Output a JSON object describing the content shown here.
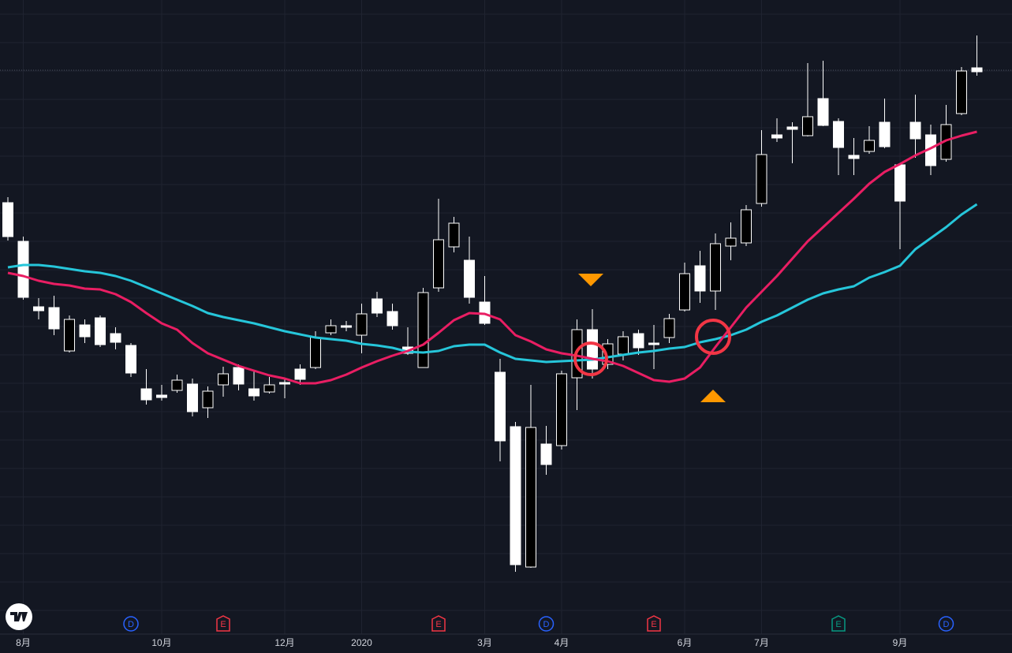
{
  "chart_data": {
    "type": "candlestick",
    "categories": [
      null,
      "8月",
      null,
      null,
      null,
      null,
      null,
      null,
      null,
      null,
      "10月",
      null,
      null,
      null,
      null,
      null,
      null,
      null,
      "12月",
      null,
      null,
      null,
      null,
      "2020",
      null,
      null,
      null,
      null,
      null,
      null,
      null,
      "3月",
      null,
      null,
      null,
      null,
      "4月",
      null,
      null,
      null,
      null,
      null,
      null,
      null,
      "6月",
      null,
      null,
      null,
      null,
      "7月",
      null,
      null,
      null,
      null,
      null,
      null,
      null,
      null,
      "9月",
      null,
      null,
      null,
      null,
      null
    ],
    "open": [
      480,
      403,
      386,
      363,
      375,
      353,
      343,
      346,
      307,
      273,
      276,
      298,
      258,
      284,
      306,
      293,
      278,
      292,
      293,
      299,
      352,
      367,
      365,
      382,
      383,
      367,
      332,
      409,
      476,
      497,
      403,
      370,
      221,
      64,
      238,
      191,
      306,
      362,
      312,
      344,
      353,
      339,
      343,
      376,
      433,
      411,
      471,
      478,
      514,
      584,
      605,
      616,
      632,
      621,
      593,
      579,
      602,
      594,
      525,
      604,
      570,
      622,
      690,
      689
    ],
    "high": [
      530,
      480,
      402,
      405,
      380,
      375,
      380,
      365,
      345,
      312,
      292,
      305,
      300,
      290,
      315,
      318,
      310,
      302,
      300,
      318,
      360,
      375,
      373,
      395,
      410,
      395,
      365,
      415,
      528,
      505,
      480,
      430,
      325,
      245,
      292,
      240,
      310,
      375,
      388,
      350,
      360,
      362,
      368,
      382,
      447,
      462,
      484,
      498,
      520,
      615,
      630,
      625,
      700,
      703,
      630,
      605,
      620,
      655,
      573,
      660,
      622,
      647,
      695,
      735
    ],
    "low": [
      475,
      400,
      375,
      355,
      333,
      345,
      340,
      337,
      302,
      267,
      272,
      282,
      252,
      250,
      277,
      285,
      272,
      281,
      275,
      292,
      312,
      355,
      360,
      332,
      378,
      362,
      330,
      314,
      410,
      460,
      395,
      368,
      195,
      55,
      60,
      178,
      210,
      260,
      300,
      312,
      323,
      330,
      312,
      345,
      385,
      396,
      387,
      450,
      468,
      518,
      600,
      573,
      607,
      620,
      558,
      558,
      585,
      592,
      464,
      580,
      558,
      575,
      634,
      684
    ],
    "close": [
      523,
      474,
      391,
      390,
      335,
      368,
      377,
      357,
      342,
      287,
      279,
      285,
      293,
      263,
      292,
      314,
      287,
      283,
      295,
      312,
      314,
      358,
      367,
      355,
      401,
      385,
      340,
      314,
      415,
      467,
      450,
      397,
      308,
      239,
      61,
      217,
      215,
      301,
      362,
      318,
      331,
      357,
      345,
      352,
      387,
      443,
      411,
      468,
      472,
      522,
      609,
      619,
      608,
      655,
      626,
      583,
      588,
      625,
      571,
      625,
      609,
      578,
      636,
      694
    ],
    "up_color": "#ffffff",
    "down_color": "#000000",
    "overlays": [
      {
        "color": "#26c6da",
        "values": [
          441,
          444,
          444,
          442,
          439,
          436,
          434,
          430,
          424,
          416,
          408,
          400,
          392,
          383,
          378,
          374,
          370,
          365,
          360,
          356,
          352,
          350,
          348,
          344,
          342,
          339,
          334,
          333,
          335,
          341,
          343,
          343,
          333,
          325,
          323,
          321,
          322,
          323,
          324,
          327,
          330,
          333,
          335,
          338,
          340,
          346,
          350,
          355,
          362,
          372,
          380,
          390,
          400,
          408,
          413,
          417,
          428,
          435,
          443,
          464,
          478,
          492,
          508,
          521
        ]
      },
      {
        "color": "#e91e63",
        "values": [
          434,
          430,
          424,
          420,
          418,
          414,
          413,
          407,
          397,
          383,
          370,
          362,
          345,
          332,
          324,
          316,
          310,
          304,
          300,
          294,
          294,
          298,
          305,
          314,
          322,
          329,
          335,
          343,
          358,
          374,
          383,
          382,
          375,
          355,
          347,
          337,
          332,
          329,
          325,
          322,
          316,
          307,
          298,
          296,
          300,
          314,
          340,
          365,
          390,
          410,
          430,
          452,
          474,
          492,
          510,
          528,
          547,
          562,
          572,
          583,
          592,
          602,
          608,
          613
        ]
      }
    ],
    "events": [
      {
        "label": "D",
        "index": 8,
        "color": "#2962ff"
      },
      {
        "label": "E",
        "index": 14,
        "color": "#f23645"
      },
      {
        "label": "E",
        "index": 28,
        "color": "#f23645"
      },
      {
        "label": "D",
        "index": 35,
        "color": "#2962ff"
      },
      {
        "label": "E",
        "index": 42,
        "color": "#f23645"
      },
      {
        "label": "E",
        "index": 54,
        "color": "#089981"
      },
      {
        "label": "D",
        "index": 61,
        "color": "#2962ff"
      }
    ],
    "ylim": [
      0,
      780
    ]
  }
}
